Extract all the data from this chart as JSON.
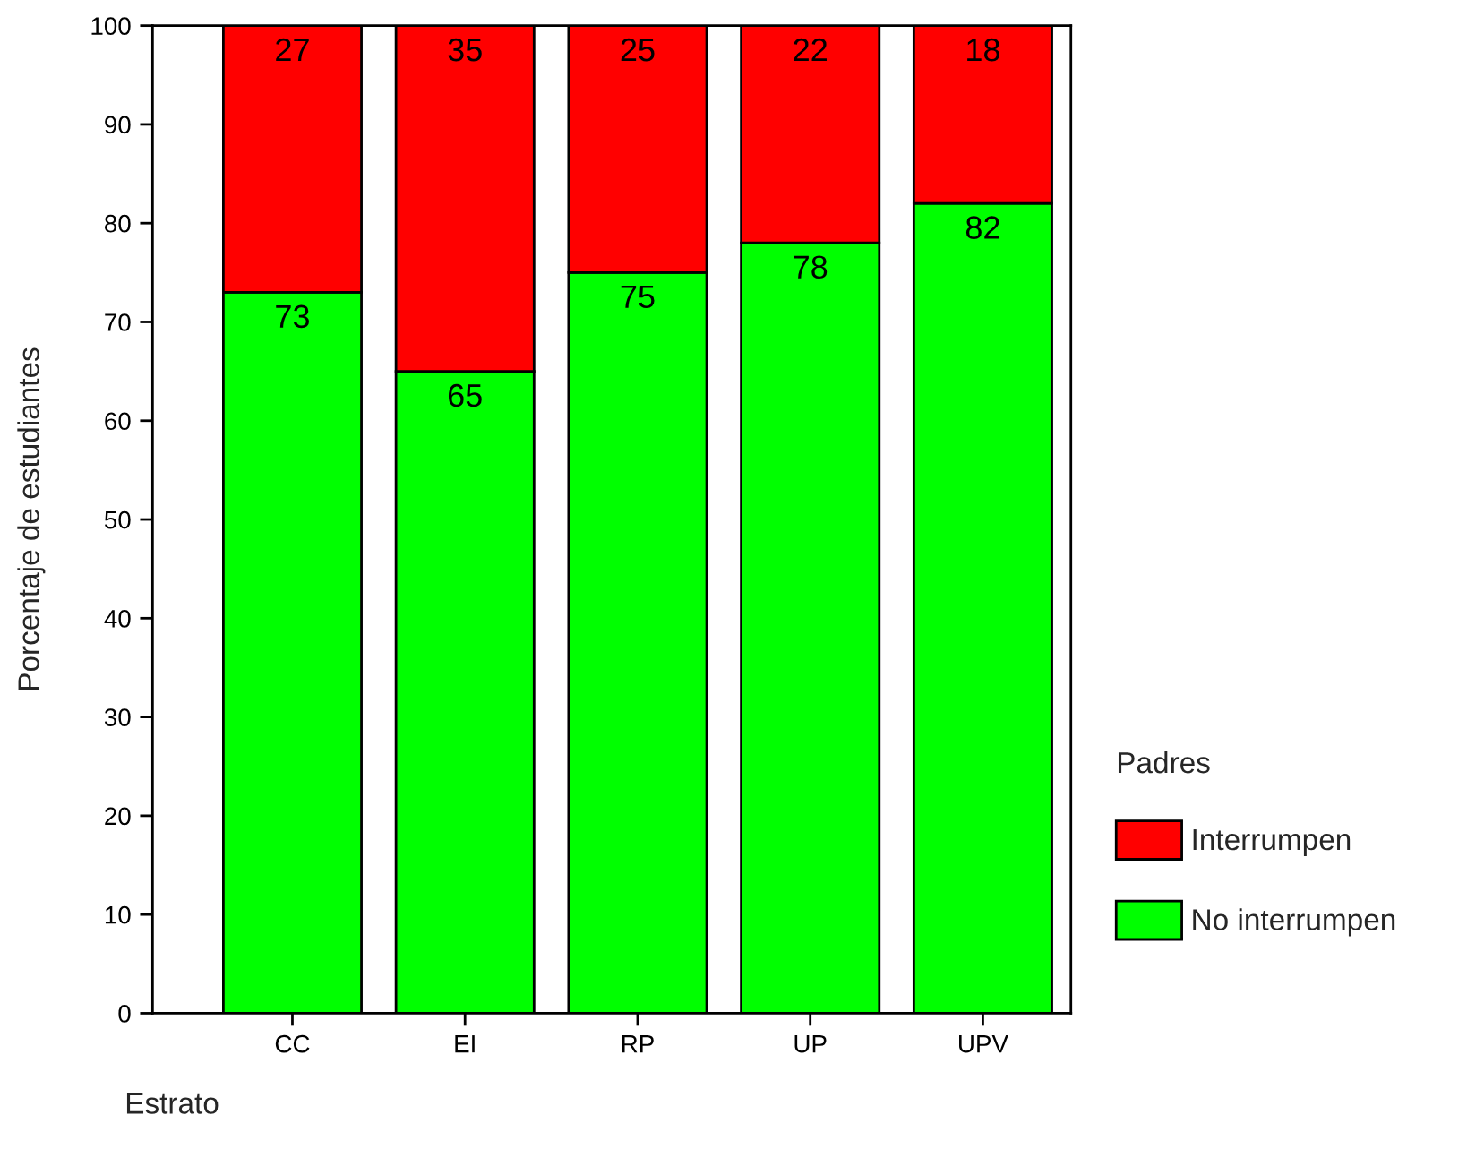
{
  "chart_data": {
    "type": "bar",
    "stacked": true,
    "xlabel": "Estrato",
    "ylabel": "Porcentaje de estudiantes",
    "legend_title": "Padres",
    "categories": [
      "CC",
      "EI",
      "RP",
      "UP",
      "UPV"
    ],
    "series": [
      {
        "name": "No interrumpen",
        "color": "#00ff00",
        "values": [
          73,
          65,
          75,
          78,
          82
        ]
      },
      {
        "name": "Interrumpen",
        "color": "#ff0000",
        "values": [
          27,
          35,
          25,
          22,
          18
        ]
      }
    ],
    "ylim": [
      0,
      100
    ],
    "yticks": [
      0,
      10,
      20,
      30,
      40,
      50,
      60,
      70,
      80,
      90,
      100
    ],
    "grid": false,
    "legend": "right",
    "data_labels": true
  }
}
